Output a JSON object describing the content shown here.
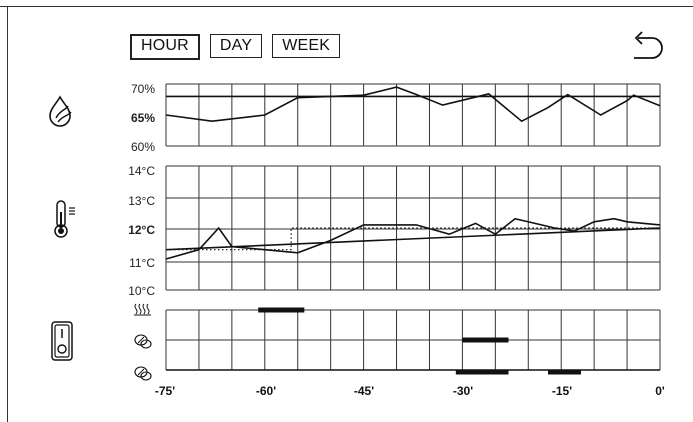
{
  "tabs": [
    {
      "label": "HOUR",
      "active": true
    },
    {
      "label": "DAY",
      "active": false
    },
    {
      "label": "WEEK",
      "active": false
    }
  ],
  "humidity": {
    "ylabels": [
      "70%",
      "65%",
      "60%"
    ],
    "bold_label": "65%",
    "setpoint": 68,
    "series": [
      [
        -75,
        65
      ],
      [
        -68,
        64
      ],
      [
        -60,
        65
      ],
      [
        -55,
        67.8
      ],
      [
        -45,
        68.2
      ],
      [
        -40,
        69.5
      ],
      [
        -37,
        68.3
      ],
      [
        -33,
        66.6
      ],
      [
        -26,
        68.4
      ],
      [
        -21,
        64
      ],
      [
        -17,
        66.2
      ],
      [
        -14,
        68.3
      ],
      [
        -9,
        65
      ],
      [
        -5,
        67.3
      ],
      [
        -4,
        68.2
      ],
      [
        0,
        66.5
      ]
    ],
    "range": [
      60,
      70
    ]
  },
  "temperature": {
    "ylabels": [
      "14°C",
      "13°C",
      "12°C",
      "11°C",
      "10°C"
    ],
    "bold_label": "12°C",
    "range": [
      10,
      14
    ],
    "series": [
      [
        -75,
        11
      ],
      [
        -70,
        11.3
      ],
      [
        -67,
        12
      ],
      [
        -65,
        11.4
      ],
      [
        -60,
        11.3
      ],
      [
        -55,
        11.2
      ],
      [
        -50,
        11.6
      ],
      [
        -45,
        12.1
      ],
      [
        -40,
        12.1
      ],
      [
        -37,
        12.1
      ],
      [
        -32,
        11.8
      ],
      [
        -28,
        12.15
      ],
      [
        -25,
        11.8
      ],
      [
        -22,
        12.3
      ],
      [
        -18,
        12.1
      ],
      [
        -16,
        12
      ],
      [
        -13,
        11.9
      ],
      [
        -10,
        12.2
      ],
      [
        -7,
        12.3
      ],
      [
        -5,
        12.2
      ],
      [
        0,
        12.1
      ]
    ],
    "trend": [
      [
        -75,
        11.3
      ],
      [
        0,
        12
      ]
    ],
    "dotted": [
      [
        -75,
        11.3
      ],
      [
        -56,
        11.3
      ],
      [
        -56,
        12
      ],
      [
        0,
        12
      ]
    ]
  },
  "activity": {
    "rows": [
      {
        "icon": "heating-icon",
        "bars": [
          [
            -61,
            -54
          ]
        ]
      },
      {
        "icon": "leaf-rain-icon",
        "bars": [
          [
            -30,
            -23
          ]
        ]
      },
      {
        "icon": "leaf-drop-icon",
        "bars": [
          [
            -31,
            -23
          ],
          [
            -17,
            -12
          ]
        ]
      }
    ]
  },
  "xaxis": {
    "labels": [
      "-75'",
      "-60'",
      "-45'",
      "-30'",
      "-15'",
      "0'"
    ],
    "values": [
      -75,
      -60,
      -45,
      -30,
      -15,
      0
    ],
    "range": [
      -75,
      0
    ]
  },
  "icons": {
    "humidity": "humidity-drop-icon",
    "temperature": "thermometer-icon",
    "switch": "power-switch-icon",
    "back": "back-arrow-icon"
  }
}
